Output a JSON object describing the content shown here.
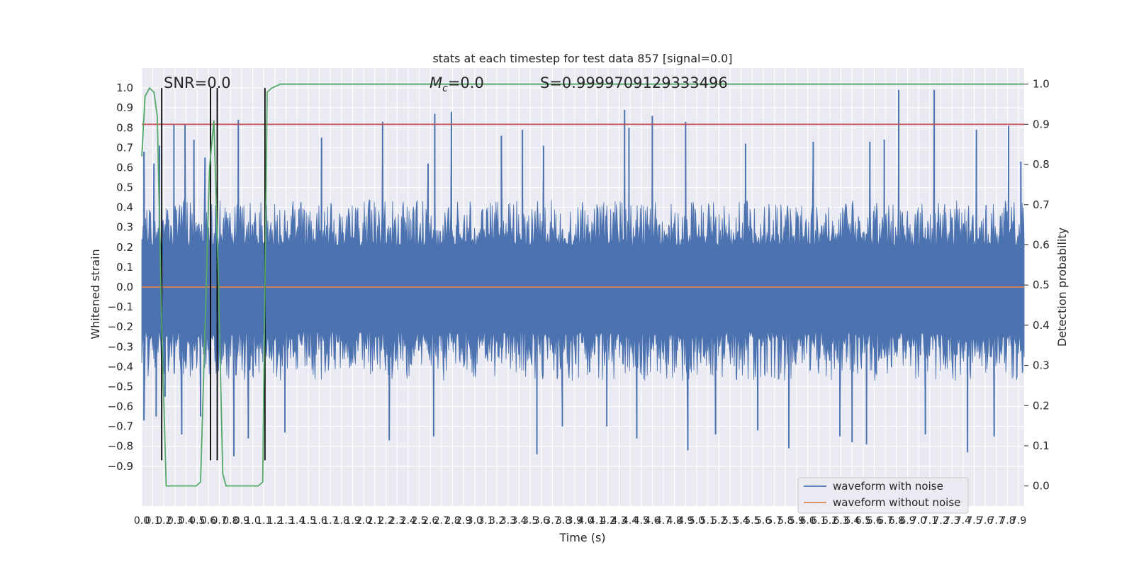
{
  "chart_data": {
    "type": "line",
    "title": "stats at each timestep for test data 857 [signal=0.0]",
    "xlabel": "Time (s)",
    "ylabel": "Whitened strain",
    "ylabel_right": "Detection probability",
    "xlim": [
      0.0,
      7.95
    ],
    "ylim": [
      -1.1,
      1.1
    ],
    "ylim_right": [
      -0.05,
      1.04
    ],
    "grid": true,
    "legend_position": "lower-right",
    "annotations": {
      "snr": "SNR=0.0",
      "mc_symbol": "M",
      "mc_sub": "c",
      "mc_value": "=0.0",
      "s": "S=0.9999709129333496"
    },
    "x_ticks": [
      "0.0",
      "0.1",
      "0.2",
      "0.3",
      "0.4",
      "0.5",
      "0.6",
      "0.7",
      "0.8",
      "0.9",
      "1.0",
      "1.1",
      "1.2",
      "1.3",
      "1.4",
      "1.5",
      "1.6",
      "1.7",
      "1.8",
      "1.9",
      "2.0",
      "2.1",
      "2.2",
      "2.3",
      "2.4",
      "2.5",
      "2.6",
      "2.7",
      "2.8",
      "2.9",
      "3.0",
      "3.1",
      "3.2",
      "3.3",
      "3.4",
      "3.5",
      "3.6",
      "3.7",
      "3.8",
      "3.9",
      "4.0",
      "4.1",
      "4.2",
      "4.3",
      "4.4",
      "4.5",
      "4.6",
      "4.7",
      "4.8",
      "4.9",
      "5.0",
      "5.1",
      "5.2",
      "5.3",
      "5.4",
      "5.5",
      "5.6",
      "5.7",
      "5.8",
      "5.9",
      "6.0",
      "6.1",
      "6.2",
      "6.3",
      "6.4",
      "6.5",
      "6.6",
      "6.7",
      "6.8",
      "6.9",
      "7.0",
      "7.1",
      "7.2",
      "7.3",
      "7.4",
      "7.5",
      "7.6",
      "7.7",
      "7.8",
      "7.9"
    ],
    "y_ticks": [
      "1.0",
      "0.9",
      "0.8",
      "0.7",
      "0.6",
      "0.5",
      "0.4",
      "0.3",
      "0.2",
      "0.1",
      "0.0",
      "−0.1",
      "−0.2",
      "−0.3",
      "−0.4",
      "−0.5",
      "−0.6",
      "−0.7",
      "−0.8",
      "−0.9"
    ],
    "y_tick_values": [
      1.0,
      0.9,
      0.8,
      0.7,
      0.6,
      0.5,
      0.4,
      0.3,
      0.2,
      0.1,
      0.0,
      -0.1,
      -0.2,
      -0.3,
      -0.4,
      -0.5,
      -0.6,
      -0.7,
      -0.8,
      -0.9
    ],
    "y_right_ticks": [
      "1.0",
      "0.9",
      "0.8",
      "0.7",
      "0.6",
      "0.5",
      "0.4",
      "0.3",
      "0.2",
      "0.1",
      "0.0"
    ],
    "y_right_tick_values": [
      1.0,
      0.9,
      0.8,
      0.7,
      0.6,
      0.5,
      0.4,
      0.3,
      0.2,
      0.1,
      0.0
    ],
    "series": [
      {
        "name": "waveform with noise",
        "color": "#4c72b0",
        "axis": "left",
        "envelope_upper": 0.38,
        "envelope_lower": -0.41,
        "peaks": [
          [
            0.02,
            0.68
          ],
          [
            0.11,
            0.62
          ],
          [
            0.16,
            0.71
          ],
          [
            0.29,
            0.82
          ],
          [
            0.39,
            0.82
          ],
          [
            0.47,
            0.74
          ],
          [
            0.57,
            0.65
          ],
          [
            0.87,
            0.84
          ],
          [
            1.62,
            0.75
          ],
          [
            2.17,
            0.83
          ],
          [
            2.58,
            0.62
          ],
          [
            2.64,
            0.87
          ],
          [
            2.79,
            0.88
          ],
          [
            3.24,
            0.76
          ],
          [
            3.43,
            0.79
          ],
          [
            3.62,
            0.71
          ],
          [
            4.39,
            0.8
          ],
          [
            4.35,
            0.89
          ],
          [
            4.6,
            0.86
          ],
          [
            4.9,
            0.83
          ],
          [
            5.44,
            0.72
          ],
          [
            6.05,
            0.73
          ],
          [
            6.56,
            0.73
          ],
          [
            6.69,
            0.74
          ],
          [
            6.82,
            0.99
          ],
          [
            7.14,
            0.99
          ],
          [
            7.52,
            0.79
          ],
          [
            7.81,
            0.81
          ],
          [
            7.92,
            0.63
          ]
        ],
        "troughs": [
          [
            0.02,
            -0.67
          ],
          [
            0.13,
            -0.65
          ],
          [
            0.21,
            -0.55
          ],
          [
            0.36,
            -0.74
          ],
          [
            0.53,
            -0.65
          ],
          [
            0.83,
            -0.85
          ],
          [
            0.96,
            -0.76
          ],
          [
            1.29,
            -0.73
          ],
          [
            2.23,
            -0.77
          ],
          [
            2.63,
            -0.75
          ],
          [
            3.56,
            -0.84
          ],
          [
            3.79,
            -0.7
          ],
          [
            4.19,
            -0.7
          ],
          [
            4.46,
            -0.76
          ],
          [
            4.92,
            -0.82
          ],
          [
            5.17,
            -0.74
          ],
          [
            5.55,
            -0.72
          ],
          [
            5.83,
            -0.81
          ],
          [
            6.29,
            -0.75
          ],
          [
            6.4,
            -0.78
          ],
          [
            6.53,
            -0.79
          ],
          [
            7.06,
            -0.74
          ],
          [
            7.44,
            -0.83
          ],
          [
            7.68,
            -0.75
          ]
        ]
      },
      {
        "name": "waveform without noise",
        "color": "#dd8452",
        "axis": "left",
        "x": [
          0.0,
          7.95
        ],
        "y": [
          0.0,
          0.0
        ]
      },
      {
        "color": "#55a868",
        "axis": "right",
        "x": [
          0.0,
          0.03,
          0.07,
          0.11,
          0.14,
          0.18,
          0.22,
          0.3,
          0.35,
          0.4,
          0.45,
          0.49,
          0.53,
          0.57,
          0.61,
          0.65,
          0.69,
          0.73,
          0.76,
          0.81,
          0.86,
          0.9,
          0.95,
          1.0,
          1.05,
          1.09,
          1.13,
          1.17,
          1.25,
          7.95
        ],
        "y": [
          0.82,
          0.97,
          0.99,
          0.98,
          0.92,
          0.4,
          0.0,
          0.0,
          0.0,
          0.0,
          0.0,
          0.0,
          0.01,
          0.39,
          0.79,
          0.91,
          0.52,
          0.03,
          0.0,
          0.0,
          0.0,
          0.0,
          0.0,
          0.0,
          0.0,
          0.01,
          0.98,
          0.99,
          1.0,
          1.0
        ]
      }
    ],
    "threshold": {
      "color": "#c44e52",
      "axis": "right",
      "value": 0.9
    },
    "vertical_markers": {
      "color": "#000000",
      "axis": "left",
      "x": [
        0.18,
        0.62,
        0.68,
        1.11
      ],
      "y_from": -0.87,
      "y_to": 1.0
    }
  }
}
